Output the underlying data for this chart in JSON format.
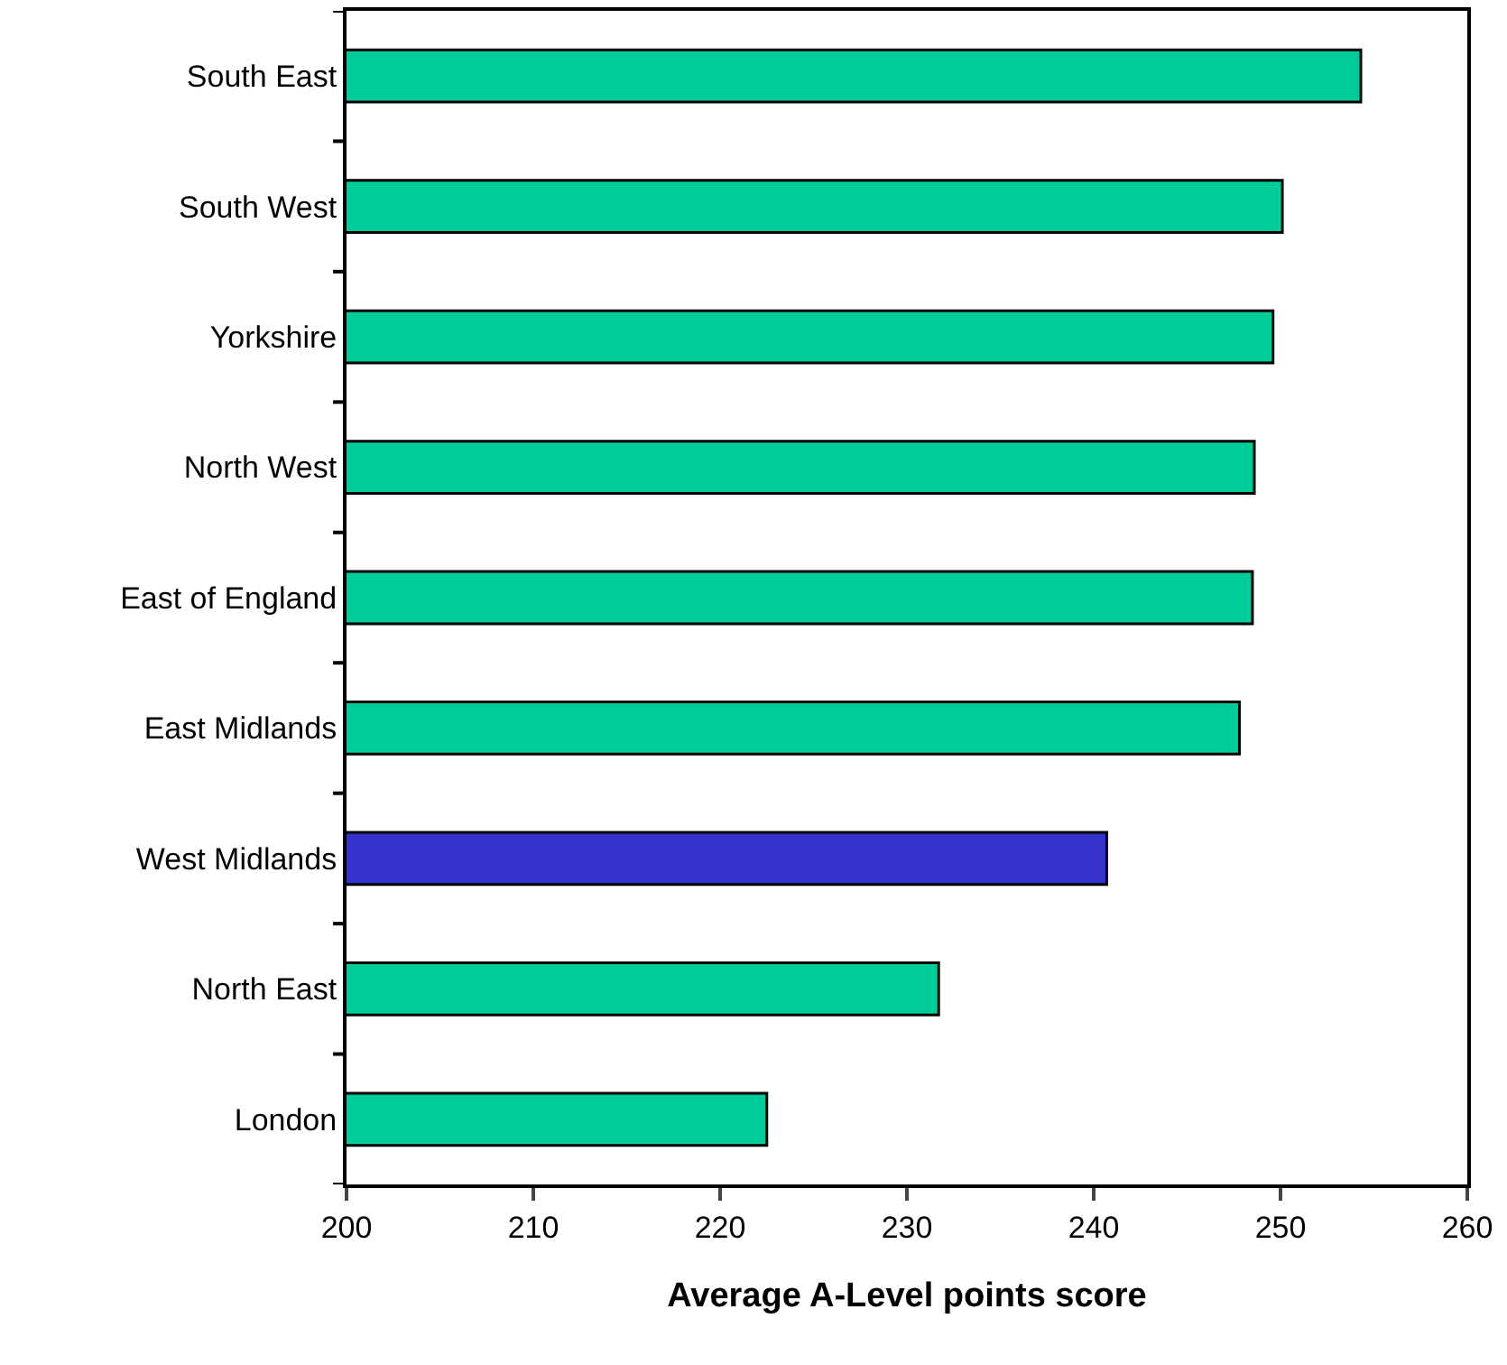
{
  "chart_data": {
    "type": "bar",
    "orientation": "horizontal",
    "xlabel": "Average A-Level points score",
    "categories": [
      "South East",
      "South West",
      "Yorkshire",
      "North West",
      "East of England",
      "East Midlands",
      "West Midlands",
      "North East",
      "London"
    ],
    "values": [
      254.3,
      250.1,
      249.6,
      248.6,
      248.5,
      247.8,
      240.7,
      231.7,
      222.5
    ],
    "colors": [
      "#00cc99",
      "#00cc99",
      "#00cc99",
      "#00cc99",
      "#00cc99",
      "#00cc99",
      "#3333cc",
      "#00cc99",
      "#00cc99"
    ],
    "xlim": [
      200,
      260
    ],
    "xticks": [
      200,
      210,
      220,
      230,
      240,
      250,
      260
    ],
    "grid": false
  }
}
